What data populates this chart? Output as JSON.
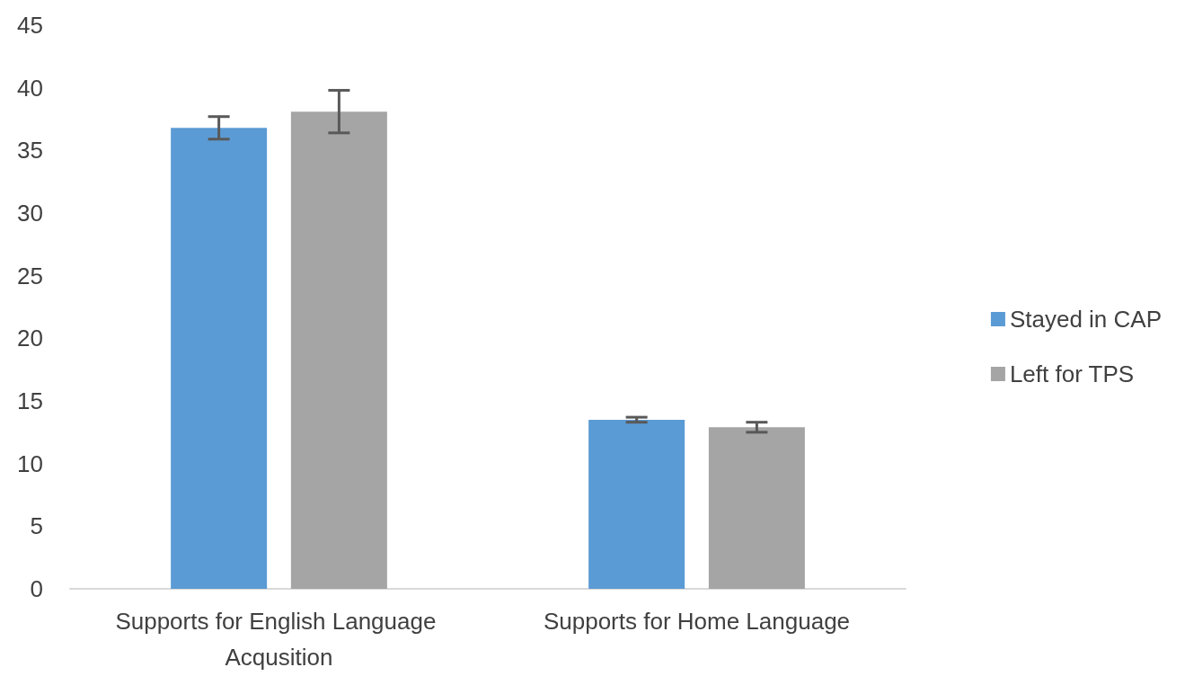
{
  "chart_data": {
    "type": "bar",
    "categories": [
      "Supports for English Language Acqusition",
      "Supports for Home Language"
    ],
    "series": [
      {
        "name": "Stayed in CAP",
        "color": "#5b9bd5",
        "values": [
          36.8,
          13.5
        ],
        "errors": [
          0.9,
          0.2
        ]
      },
      {
        "name": "Left for TPS",
        "color": "#a5a5a5",
        "values": [
          38.1,
          12.9
        ],
        "errors": [
          1.7,
          0.4
        ]
      }
    ],
    "ylim": [
      0,
      45
    ],
    "yticks": [
      0,
      5,
      10,
      15,
      20,
      25,
      30,
      35,
      40,
      45
    ],
    "grid": false,
    "legend": "right"
  }
}
